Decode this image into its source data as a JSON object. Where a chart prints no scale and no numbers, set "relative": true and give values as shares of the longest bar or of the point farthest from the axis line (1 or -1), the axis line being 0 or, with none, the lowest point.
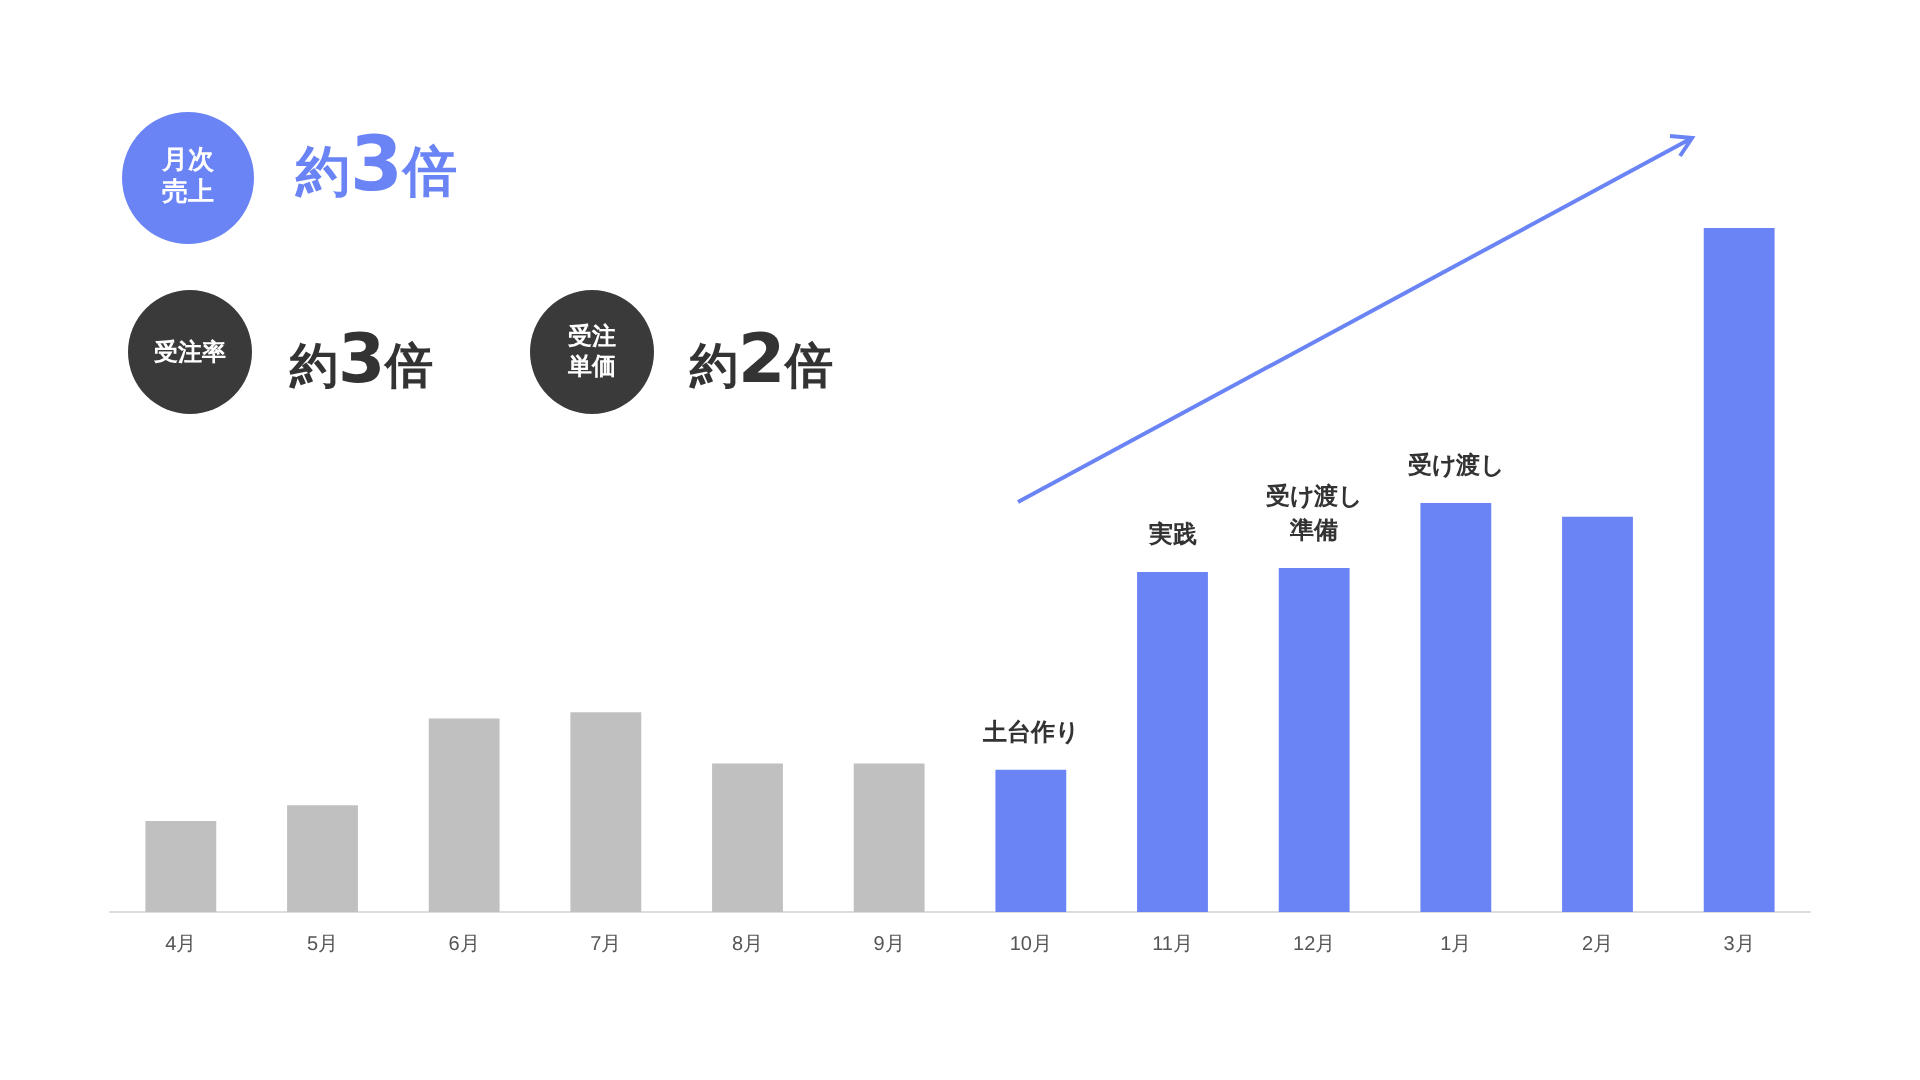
{
  "chart_data": {
    "type": "bar",
    "relative": true,
    "categories": [
      "4月",
      "5月",
      "6月",
      "7月",
      "8月",
      "9月",
      "10月",
      "11月",
      "12月",
      "1月",
      "2月",
      "3月"
    ],
    "values": [
      0.133,
      0.156,
      0.283,
      0.292,
      0.217,
      0.217,
      0.208,
      0.497,
      0.503,
      0.598,
      0.578,
      1
    ],
    "colors": [
      "#c0c0c0",
      "#c0c0c0",
      "#c0c0c0",
      "#c0c0c0",
      "#c0c0c0",
      "#c0c0c0",
      "#6a84f5",
      "#6a84f5",
      "#6a84f5",
      "#6a84f5",
      "#6a84f5",
      "#6a84f5"
    ],
    "grid": false,
    "legend": false,
    "annotations": [
      "月次売上",
      "約3倍",
      "受注率",
      "約3倍",
      "受注単価",
      "約2倍",
      {
        "text": "土台作り",
        "x": "10月",
        "y": 0.208
      },
      {
        "text": "実践",
        "x": "11月",
        "y": 0.497
      },
      {
        "text": "受け渡し準備",
        "x": "12月",
        "y": 0.503
      },
      {
        "text": "受け渡し",
        "x": "1月",
        "y": 0.598
      }
    ]
  }
}
